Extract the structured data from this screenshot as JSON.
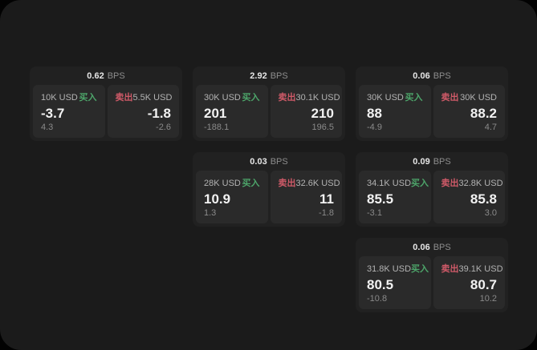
{
  "labels": {
    "buy": "买入",
    "sell": "卖出",
    "bps_unit": "BPS"
  },
  "colors": {
    "buy_accent": "#4da56a",
    "sell_accent": "#cf5a68",
    "app_background": "#1b1b1b",
    "card_background": "#212121",
    "tile_background": "#2a2a2a"
  },
  "cards": [
    {
      "bps": "0.62",
      "buy": {
        "amount": "10K USD",
        "value": "-3.7",
        "delta": "4.3"
      },
      "sell": {
        "amount": "5.5K USD",
        "value": "-1.8",
        "delta": "-2.6"
      }
    },
    {
      "bps": "2.92",
      "buy": {
        "amount": "30K USD",
        "value": "201",
        "delta": "-188.1"
      },
      "sell": {
        "amount": "30.1K USD",
        "value": "210",
        "delta": "196.5"
      }
    },
    {
      "bps": "0.06",
      "buy": {
        "amount": "30K USD",
        "value": "88",
        "delta": "-4.9"
      },
      "sell": {
        "amount": "30K USD",
        "value": "88.2",
        "delta": "4.7"
      }
    },
    {
      "bps": "0.03",
      "buy": {
        "amount": "28K USD",
        "value": "10.9",
        "delta": "1.3"
      },
      "sell": {
        "amount": "32.6K USD",
        "value": "11",
        "delta": "-1.8"
      }
    },
    {
      "bps": "0.09",
      "buy": {
        "amount": "34.1K USD",
        "value": "85.5",
        "delta": "-3.1"
      },
      "sell": {
        "amount": "32.8K USD",
        "value": "85.8",
        "delta": "3.0"
      }
    },
    {
      "bps": "0.06",
      "buy": {
        "amount": "31.8K USD",
        "value": "80.5",
        "delta": "-10.8"
      },
      "sell": {
        "amount": "39.1K USD",
        "value": "80.7",
        "delta": "10.2"
      }
    }
  ]
}
